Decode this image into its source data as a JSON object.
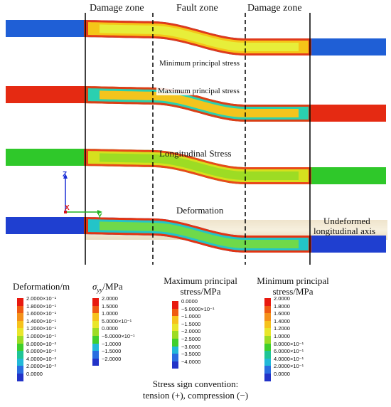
{
  "zones": {
    "left_damage": "Damage zone",
    "fault": "Fault zone",
    "right_damage": "Damage zone"
  },
  "pipes": [
    {
      "label": "Minimum principal stress",
      "colors": {
        "base": "#1f5fd6",
        "inner": "#f5c518",
        "edge": "#e03a1a",
        "core": "#e7ee3a"
      }
    },
    {
      "label": "Maximum principal stress",
      "colors": {
        "base": "#e52a12",
        "inner": "#2ad0b0",
        "edge": "#d94016",
        "core": "#f3c41d"
      }
    },
    {
      "label": "Longitudinal Stress",
      "colors": {
        "base": "#2fc82a",
        "inner": "#d6e01e",
        "edge": "#e84a1a",
        "core": "#9ddc24"
      }
    },
    {
      "label": "Deformation",
      "colors": {
        "base": "#1f3fd0",
        "inner": "#23c4c8",
        "edge": "#e33412",
        "core": "#6fd94a"
      }
    }
  ],
  "axes": {
    "z": "Z",
    "x": "X",
    "y": "Y"
  },
  "undeformed_axis": {
    "line1": "Undeformed",
    "line2": "longitudinal axis"
  },
  "legends": [
    {
      "title_line1": "Deformation/m",
      "title_line2": "",
      "ticks": [
        "2.0000×10⁻¹",
        "1.8000×10⁻¹",
        "1.6000×10⁻¹",
        "1.4000×10⁻¹",
        "1.2000×10⁻¹",
        "1.0000×10⁻¹",
        "8.0000×10⁻²",
        "6.0000×10⁻²",
        "4.0000×10⁻²",
        "2.0000×10⁻²",
        "0.0000"
      ]
    },
    {
      "title_line1": "σyy/MPa",
      "title_line2": "",
      "ticks": [
        "2.0000",
        "1.5000",
        "1.0000",
        "5.0000×10⁻¹",
        "0.0000",
        "−5.0000×10⁻¹",
        "−1.0000",
        "−1.5000",
        "−2.0000"
      ]
    },
    {
      "title_line1": "Maximum principal",
      "title_line2": "stress/MPa",
      "ticks": [
        "0.0000",
        "−5.0000×10⁻¹",
        "−1.0000",
        "−1.5000",
        "−2.0000",
        "−2.5000",
        "−3.0000",
        "−3.5000",
        "−4.0000"
      ]
    },
    {
      "title_line1": "Minimum principal",
      "title_line2": "stress/MPa",
      "ticks": [
        "2.0000",
        "1.8000",
        "1.6000",
        "1.4000",
        "1.2000",
        "1.0000",
        "8.0000×10⁻¹",
        "6.0000×10⁻¹",
        "4.0000×10⁻¹",
        "2.0000×10⁻¹",
        "0.0000"
      ]
    }
  ],
  "colormap": [
    "#e8190f",
    "#ef5a12",
    "#f4911a",
    "#f6c21c",
    "#e9e62a",
    "#9ddc24",
    "#3fcf2c",
    "#1fc596",
    "#22b9d8",
    "#2a6de0",
    "#2233c8"
  ],
  "sign_note": {
    "line1": "Stress sign convention:",
    "line2": "tension (+), compression (−)"
  }
}
